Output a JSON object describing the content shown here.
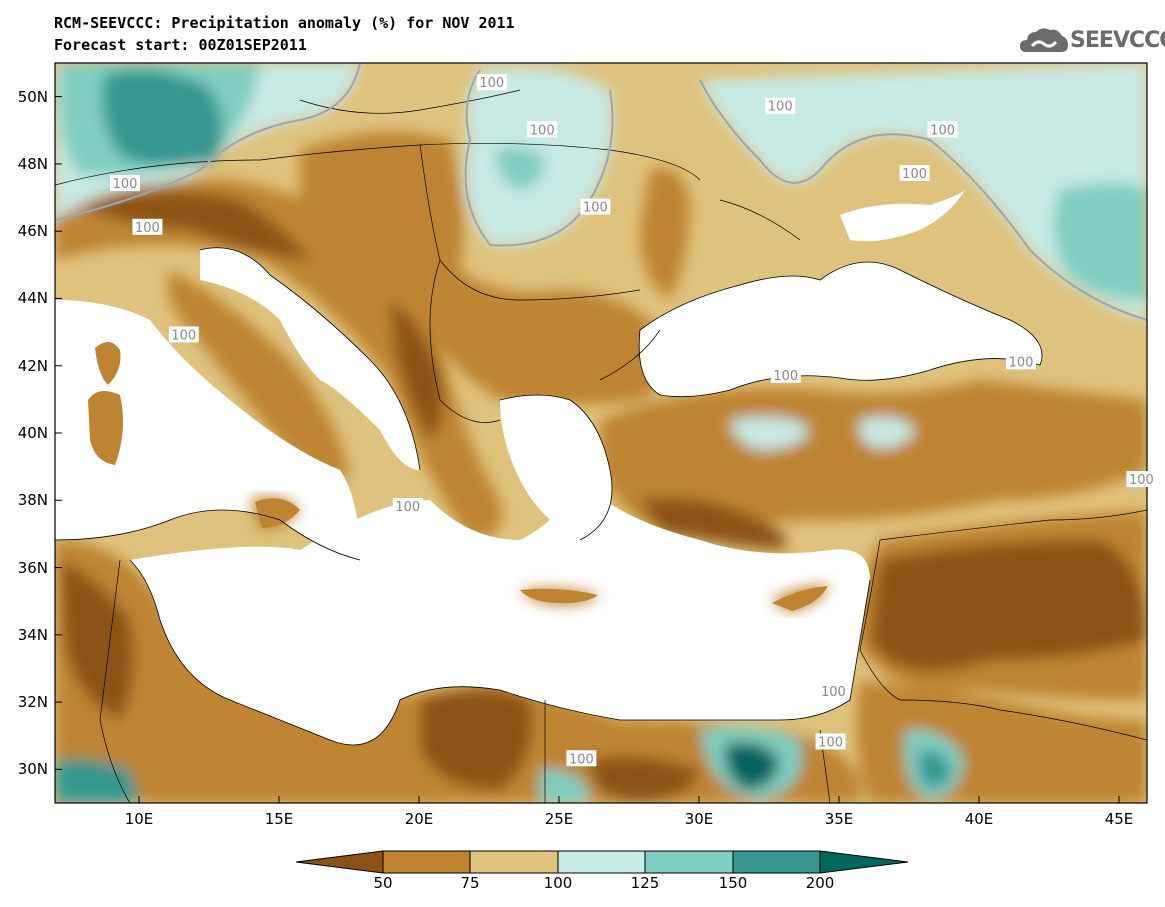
{
  "header": {
    "title_line1": "RCM-SEEVCCC: Precipitation anomaly (%) for NOV 2011",
    "title_line2": "Forecast start: 00Z01SEP2011",
    "logo_text": "SEEVCCC"
  },
  "axes": {
    "lat_labels": [
      "50N",
      "48N",
      "46N",
      "44N",
      "42N",
      "40N",
      "38N",
      "36N",
      "34N",
      "32N",
      "30N"
    ],
    "lon_labels": [
      "10E",
      "15E",
      "20E",
      "25E",
      "30E",
      "35E",
      "40E",
      "45E"
    ],
    "lat_values": [
      50,
      48,
      46,
      44,
      42,
      40,
      38,
      36,
      34,
      32,
      30
    ],
    "lon_values": [
      10,
      15,
      20,
      25,
      30,
      35,
      40,
      45
    ],
    "lon_range": [
      7,
      46
    ],
    "lat_range": [
      29,
      51
    ]
  },
  "colorbar": {
    "labels": [
      "50",
      "75",
      "100",
      "125",
      "150",
      "200"
    ],
    "colors": [
      "#8c5215",
      "#be8432",
      "#dfc27d",
      "#c7eae5",
      "#80cdc1",
      "#35978f",
      "#01665e"
    ]
  },
  "contour_labels": [
    {
      "text": "100",
      "lon": 22.6,
      "lat": 50.4
    },
    {
      "text": "100",
      "lon": 24.4,
      "lat": 49.0
    },
    {
      "text": "100",
      "lon": 9.5,
      "lat": 47.4
    },
    {
      "text": "100",
      "lon": 10.3,
      "lat": 46.1
    },
    {
      "text": "100",
      "lon": 26.3,
      "lat": 46.7
    },
    {
      "text": "100",
      "lon": 32.9,
      "lat": 49.7
    },
    {
      "text": "100",
      "lon": 38.7,
      "lat": 49.0
    },
    {
      "text": "100",
      "lon": 37.7,
      "lat": 47.7
    },
    {
      "text": "100",
      "lon": 11.6,
      "lat": 42.9
    },
    {
      "text": "100",
      "lon": 41.5,
      "lat": 42.1
    },
    {
      "text": "100",
      "lon": 33.1,
      "lat": 41.7
    },
    {
      "text": "100",
      "lon": 45.8,
      "lat": 38.6
    },
    {
      "text": "100",
      "lon": 25.8,
      "lat": 30.3
    },
    {
      "text": "100",
      "lon": 34.7,
      "lat": 30.8
    },
    {
      "text": "100",
      "lon": 34.8,
      "lat": 32.3
    },
    {
      "text": "100",
      "lon": 19.6,
      "lat": 37.8
    }
  ]
}
